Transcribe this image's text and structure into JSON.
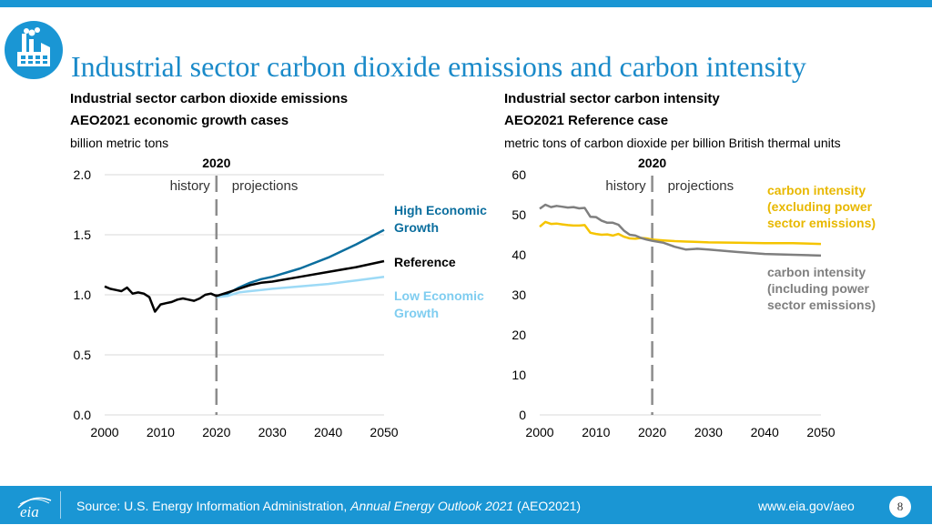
{
  "title": "Industrial sector carbon dioxide emissions and carbon intensity",
  "left_panel": {
    "subtitle1": "Industrial sector carbon dioxide emissions",
    "subtitle2": "AEO2021 economic growth cases",
    "unit": "billion metric tons"
  },
  "right_panel": {
    "subtitle1": "Industrial sector carbon intensity",
    "subtitle2": "AEO2021 Reference case",
    "unit": "metric tons of carbon dioxide per billion British thermal units"
  },
  "colors": {
    "brand": "#1a96d4",
    "title": "#1a8ac9",
    "high": "#0b6e9e",
    "reference": "#000000",
    "low": "#9ddaf6",
    "excl_power": "#f5c400",
    "incl_power": "#7f7f7f",
    "grid": "#d9d9d9",
    "divider": "#8c8c8c"
  },
  "chart_data": [
    {
      "type": "line",
      "title": "Industrial sector carbon dioxide emissions",
      "subtitle": "AEO2021 economic growth cases",
      "ylabel": "billion metric tons",
      "xlim": [
        2000,
        2050
      ],
      "ylim": [
        0,
        2.0
      ],
      "xticks": [
        2000,
        2010,
        2020,
        2030,
        2040,
        2050
      ],
      "yticks": [
        0.0,
        0.5,
        1.0,
        1.5,
        2.0
      ],
      "ytick_labels": [
        "0.0",
        "0.5",
        "1.0",
        "1.5",
        "2.0"
      ],
      "grid": true,
      "divider": {
        "x": 2020,
        "label": "2020",
        "left_label": "history",
        "right_label": "projections"
      },
      "series": [
        {
          "name": "High Economic Growth",
          "label_lines": [
            "High Economic",
            "Growth"
          ],
          "color_key": "high",
          "x": [
            2020,
            2022,
            2024,
            2026,
            2028,
            2030,
            2035,
            2040,
            2045,
            2050
          ],
          "values": [
            0.99,
            1.01,
            1.06,
            1.1,
            1.13,
            1.15,
            1.22,
            1.31,
            1.42,
            1.54
          ]
        },
        {
          "name": "Reference",
          "label_lines": [
            "Reference"
          ],
          "color_key": "reference",
          "x": [
            2000,
            2001,
            2002,
            2003,
            2004,
            2005,
            2006,
            2007,
            2008,
            2009,
            2010,
            2011,
            2012,
            2013,
            2014,
            2015,
            2016,
            2017,
            2018,
            2019,
            2020,
            2022,
            2024,
            2026,
            2028,
            2030,
            2035,
            2040,
            2045,
            2050
          ],
          "values": [
            1.07,
            1.05,
            1.04,
            1.03,
            1.06,
            1.01,
            1.02,
            1.01,
            0.98,
            0.86,
            0.92,
            0.93,
            0.94,
            0.96,
            0.97,
            0.96,
            0.95,
            0.97,
            1.0,
            1.01,
            0.99,
            1.02,
            1.05,
            1.08,
            1.1,
            1.11,
            1.15,
            1.19,
            1.23,
            1.28
          ]
        },
        {
          "name": "Low Economic Growth",
          "label_lines": [
            "Low Economic",
            "Growth"
          ],
          "color_key": "low",
          "x": [
            2020,
            2022,
            2024,
            2026,
            2028,
            2030,
            2035,
            2040,
            2045,
            2050
          ],
          "values": [
            0.98,
            0.99,
            1.02,
            1.03,
            1.04,
            1.05,
            1.07,
            1.09,
            1.12,
            1.15
          ]
        }
      ]
    },
    {
      "type": "line",
      "title": "Industrial sector carbon intensity",
      "subtitle": "AEO2021 Reference case",
      "ylabel": "metric tons of carbon dioxide per billion British thermal units",
      "xlim": [
        2000,
        2050
      ],
      "ylim": [
        0,
        60
      ],
      "xticks": [
        2000,
        2010,
        2020,
        2030,
        2040,
        2050
      ],
      "yticks": [
        0,
        10,
        20,
        30,
        40,
        50,
        60
      ],
      "ytick_labels": [
        "0",
        "10",
        "20",
        "30",
        "40",
        "50",
        "60"
      ],
      "grid": false,
      "divider": {
        "x": 2020,
        "label": "2020",
        "left_label": "history",
        "right_label": "projections"
      },
      "series": [
        {
          "name": "carbon intensity (excluding power sector emissions)",
          "label_lines": [
            "carbon intensity",
            "(excluding power",
            "sector emissions)"
          ],
          "color_key": "excl_power",
          "x": [
            2000,
            2001,
            2002,
            2003,
            2004,
            2005,
            2006,
            2007,
            2008,
            2009,
            2010,
            2011,
            2012,
            2013,
            2014,
            2015,
            2016,
            2017,
            2018,
            2019,
            2020,
            2022,
            2024,
            2026,
            2028,
            2030,
            2035,
            2040,
            2045,
            2050
          ],
          "values": [
            47.0,
            48.2,
            47.7,
            47.8,
            47.6,
            47.4,
            47.3,
            47.3,
            47.4,
            45.5,
            45.2,
            45.0,
            45.1,
            44.8,
            45.2,
            44.5,
            44.1,
            44.0,
            44.2,
            44.1,
            43.8,
            43.6,
            43.4,
            43.3,
            43.2,
            43.1,
            43.0,
            42.9,
            42.9,
            42.7
          ]
        },
        {
          "name": "carbon intensity (including power sector emissions)",
          "label_lines": [
            "carbon intensity",
            "(including power",
            "sector emissions)"
          ],
          "color_key": "incl_power",
          "x": [
            2000,
            2001,
            2002,
            2003,
            2004,
            2005,
            2006,
            2007,
            2008,
            2009,
            2010,
            2011,
            2012,
            2013,
            2014,
            2015,
            2016,
            2017,
            2018,
            2019,
            2020,
            2022,
            2024,
            2026,
            2028,
            2030,
            2035,
            2040,
            2045,
            2050
          ],
          "values": [
            51.5,
            52.5,
            51.9,
            52.2,
            52.0,
            51.8,
            51.9,
            51.6,
            51.7,
            49.5,
            49.4,
            48.5,
            48.0,
            48.0,
            47.5,
            46.0,
            45.0,
            44.8,
            44.2,
            43.8,
            43.5,
            43.0,
            42.0,
            41.3,
            41.5,
            41.3,
            40.7,
            40.2,
            40.0,
            39.8
          ]
        }
      ]
    }
  ],
  "footer": {
    "source_prefix": "Source: U.S. Energy Information Administration, ",
    "source_title": "Annual Energy Outlook 2021",
    "source_suffix": " (AEO2021)",
    "url": "www.eia.gov/aeo",
    "page_number": "8",
    "logo_text": "eia"
  },
  "icons": {
    "header": "industry-factory-icon"
  }
}
